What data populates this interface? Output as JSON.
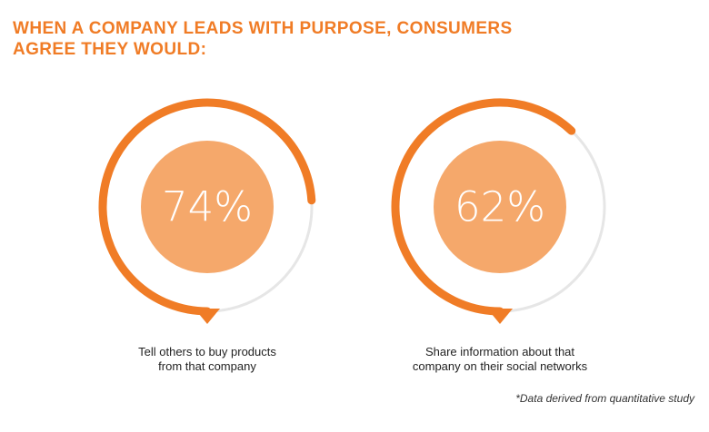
{
  "title": {
    "line1": "WHEN A COMPANY LEADS WITH PURPOSE, CONSUMERS",
    "line2": "AGREE THEY WOULD:"
  },
  "footnote": "*Data derived from quantitative study",
  "colors": {
    "accent": "#f07c26",
    "inner_fill": "#f5a86b",
    "track": "#e6e6e6"
  },
  "chart_data": {
    "type": "donut",
    "items": [
      {
        "value": 74,
        "label": "74%",
        "caption": [
          "Tell others to buy products",
          "from that company"
        ]
      },
      {
        "value": 62,
        "label": "62%",
        "caption": [
          "Share information about that",
          "company on their social networks"
        ]
      }
    ]
  }
}
